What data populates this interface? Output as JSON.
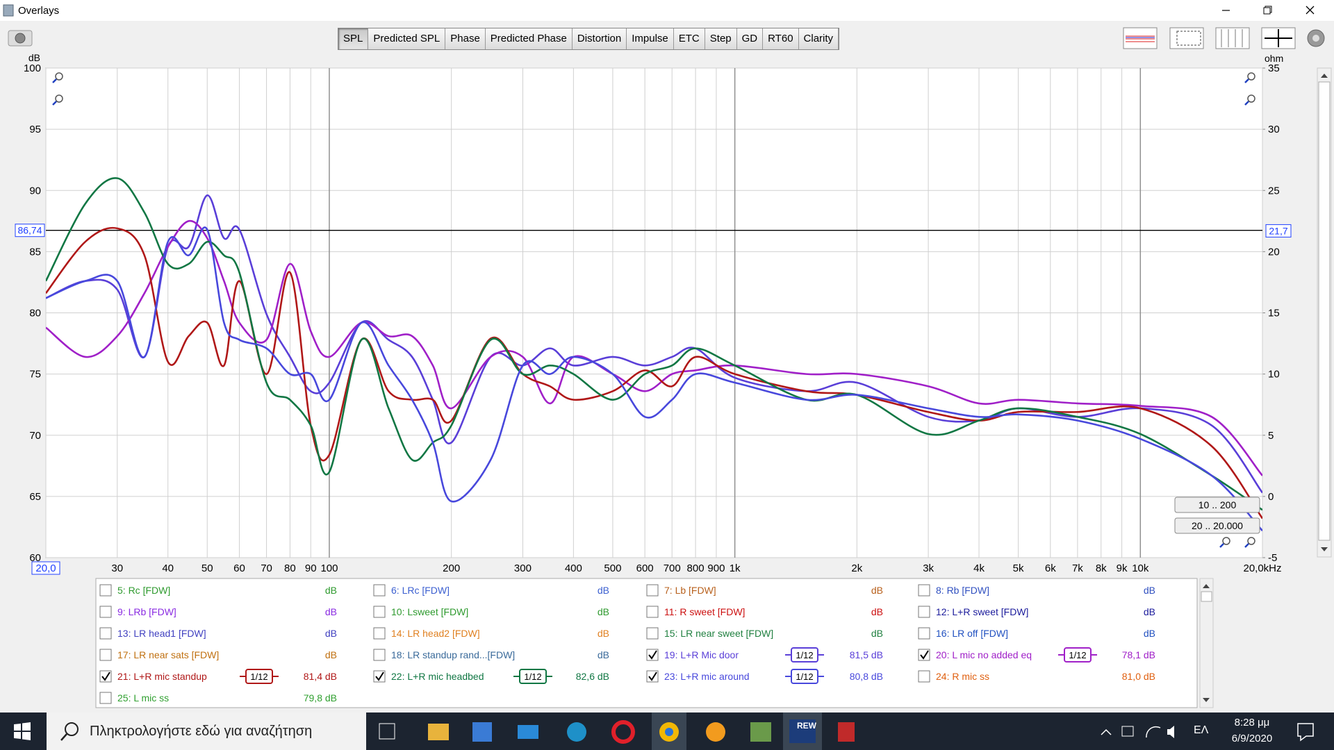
{
  "window": {
    "title": "Overlays"
  },
  "toolbar": {
    "tabs": [
      "SPL",
      "Predicted SPL",
      "Phase",
      "Predicted Phase",
      "Distortion",
      "Impulse",
      "ETC",
      "Step",
      "GD",
      "RT60",
      "Clarity"
    ],
    "selected": 0
  },
  "chart_data": {
    "type": "line",
    "x_scale": "log",
    "grid": true,
    "y_unit": "dB",
    "y2_unit": "ohm",
    "xlim": [
      20,
      20000
    ],
    "ylim": [
      60,
      100
    ],
    "y2lim": [
      -5,
      35
    ],
    "yticks": [
      60,
      65,
      70,
      75,
      80,
      85,
      90,
      95,
      100
    ],
    "y2ticks": [
      -5,
      0,
      5,
      10,
      15,
      20,
      25,
      30,
      35
    ],
    "xticks": [
      {
        "value": 20,
        "label": "20,0"
      },
      30,
      40,
      50,
      60,
      70,
      80,
      90,
      100,
      200,
      300,
      400,
      500,
      600,
      700,
      800,
      900,
      {
        "value": 1000,
        "label": "1k"
      },
      {
        "value": 2000,
        "label": "2k"
      },
      {
        "value": 3000,
        "label": "3k"
      },
      {
        "value": 4000,
        "label": "4k"
      },
      {
        "value": 5000,
        "label": "5k"
      },
      {
        "value": 6000,
        "label": "6k"
      },
      {
        "value": 7000,
        "label": "7k"
      },
      {
        "value": 8000,
        "label": "8k"
      },
      {
        "value": 9000,
        "label": "9k"
      },
      {
        "value": 10000,
        "label": "10k"
      },
      {
        "value": 20000,
        "label": "20,0kHz"
      }
    ],
    "cursor": {
      "y": {
        "value": 86.74,
        "label": "86,74"
      },
      "y2": {
        "value": 21.7,
        "label": "21,7"
      }
    },
    "range_buttons": [
      "10 .. 200",
      "20 .. 20.000"
    ],
    "x": [
      20,
      25,
      30,
      35,
      40,
      45,
      50,
      55,
      60,
      70,
      80,
      90,
      100,
      120,
      140,
      160,
      180,
      200,
      250,
      300,
      350,
      400,
      500,
      600,
      700,
      800,
      1000,
      1500,
      2000,
      3000,
      4000,
      5000,
      7000,
      10000,
      15000,
      20000
    ],
    "series": [
      {
        "name": "5: Rc [FDW]",
        "color": "#2e9a2e",
        "checked": false,
        "level": "dB"
      },
      {
        "name": "6: LRc [FDW]",
        "color": "#3b5fd0",
        "checked": false,
        "level": "dB"
      },
      {
        "name": "7: Lb [FDW]",
        "color": "#b8601c",
        "checked": false,
        "level": "dB"
      },
      {
        "name": "8: Rb [FDW]",
        "color": "#3050c0",
        "checked": false,
        "level": "dB"
      },
      {
        "name": "9: LRb [FDW]",
        "color": "#8a2be2",
        "checked": false,
        "level": "dB"
      },
      {
        "name": "10: Lsweet [FDW]",
        "color": "#2e9a2e",
        "checked": false,
        "level": "dB"
      },
      {
        "name": "11: R sweet [FDW]",
        "color": "#cc1010",
        "checked": false,
        "level": "dB"
      },
      {
        "name": "12: L+R sweet [FDW]",
        "color": "#1c1c9c",
        "checked": false,
        "level": "dB"
      },
      {
        "name": "13: LR head1 [FDW]",
        "color": "#4040c0",
        "checked": false,
        "level": "dB"
      },
      {
        "name": "14: LR head2 [FDW]",
        "color": "#e08020",
        "checked": false,
        "level": "dB"
      },
      {
        "name": "15: LR near sweet [FDW]",
        "color": "#208040",
        "checked": false,
        "level": "dB"
      },
      {
        "name": "16: LR off [FDW]",
        "color": "#2050c0",
        "checked": false,
        "level": "dB"
      },
      {
        "name": "17: LR near sats [FDW]",
        "color": "#c07010",
        "checked": false,
        "level": "dB"
      },
      {
        "name": "18: LR standup rand...[FDW]",
        "color": "#3a6a9a",
        "checked": false,
        "level": "dB"
      },
      {
        "name": "19: L+R Mic door",
        "color": "#5a3fd8",
        "checked": true,
        "smoothing": "1/12",
        "level": "81,5 dB",
        "values": [
          81.2,
          82.6,
          81.9,
          76.4,
          85.4,
          85.4,
          89.6,
          86.1,
          86.8,
          79.9,
          76.4,
          73.6,
          74.3,
          79.2,
          77.8,
          76.4,
          72.9,
          69.4,
          76.4,
          75.7,
          77.1,
          75.7,
          76.4,
          75.7,
          76.4,
          77.1,
          74.7,
          73.6,
          74.3,
          71.5,
          71.2,
          72.2,
          71.5,
          72.2,
          70.8,
          65.3
        ]
      },
      {
        "name": "20: L  mic no added eq",
        "color": "#a020c8",
        "checked": true,
        "smoothing": "1/12",
        "level": "78,1 dB",
        "values": [
          78.8,
          76.4,
          78.1,
          81.6,
          85.4,
          87.5,
          86.1,
          82.6,
          79.2,
          77.8,
          84,
          78.5,
          76.4,
          79.2,
          78.1,
          78.1,
          75.7,
          72.2,
          76.4,
          76.4,
          72.6,
          76.4,
          75,
          73.6,
          75,
          75.3,
          75.7,
          75,
          75,
          74,
          72.6,
          72.9,
          72.6,
          72.4,
          71.5,
          66.7
        ]
      },
      {
        "name": "21: L+R mic standup",
        "color": "#b01818",
        "checked": true,
        "smoothing": "1/12",
        "level": "81,4 dB",
        "values": [
          81.6,
          85.8,
          86.9,
          84.7,
          76,
          78.1,
          79.2,
          75.7,
          82.6,
          75,
          83.3,
          70.8,
          68.4,
          77.8,
          73.6,
          72.9,
          72.9,
          71.2,
          77.9,
          75,
          74,
          72.9,
          73.6,
          75.3,
          74,
          76.4,
          75,
          73.6,
          73.3,
          71.9,
          71.2,
          71.9,
          71.9,
          72.2,
          69.1,
          63.2
        ]
      },
      {
        "name": "22: L+R mic headbed",
        "color": "#117744",
        "checked": true,
        "smoothing": "1/12",
        "level": "82,6 dB",
        "values": [
          82.6,
          88.9,
          91,
          88.2,
          84,
          84,
          85.8,
          84.7,
          83.3,
          74.3,
          72.9,
          70.8,
          67,
          77.8,
          72.2,
          68,
          69.4,
          70.8,
          77.8,
          75,
          75.7,
          75,
          72.9,
          75,
          75.7,
          77.1,
          75.7,
          72.9,
          73.3,
          70.1,
          71.2,
          72.2,
          71.5,
          70.1,
          66.7,
          63.9
        ]
      },
      {
        "name": "23: L+R mic around",
        "color": "#4848dc",
        "checked": true,
        "smoothing": "1/12",
        "level": "80,8 dB",
        "values": [
          81.2,
          82.6,
          82.6,
          76.4,
          85.8,
          84.7,
          86.8,
          79.2,
          77.8,
          77.1,
          75,
          75,
          72.9,
          79.2,
          75.7,
          72.9,
          69.4,
          64.6,
          68,
          75.7,
          75,
          76.4,
          75,
          71.5,
          72.9,
          75,
          74.3,
          72.9,
          73.3,
          72.2,
          71.5,
          71.7,
          71.2,
          69.7,
          66.7,
          62.2
        ]
      },
      {
        "name": "24: R mic ss",
        "color": "#e06010",
        "checked": false,
        "level": "81,0 dB"
      },
      {
        "name": "25: L mic ss",
        "color": "#30a030",
        "checked": false,
        "level": "79,8 dB"
      }
    ]
  },
  "taskbar": {
    "search": "Πληκτρολογήστε εδώ για αναζήτηση",
    "app_label": "REW",
    "language": "ΕΛ",
    "time": "8:28 μμ",
    "date": "6/9/2020"
  }
}
